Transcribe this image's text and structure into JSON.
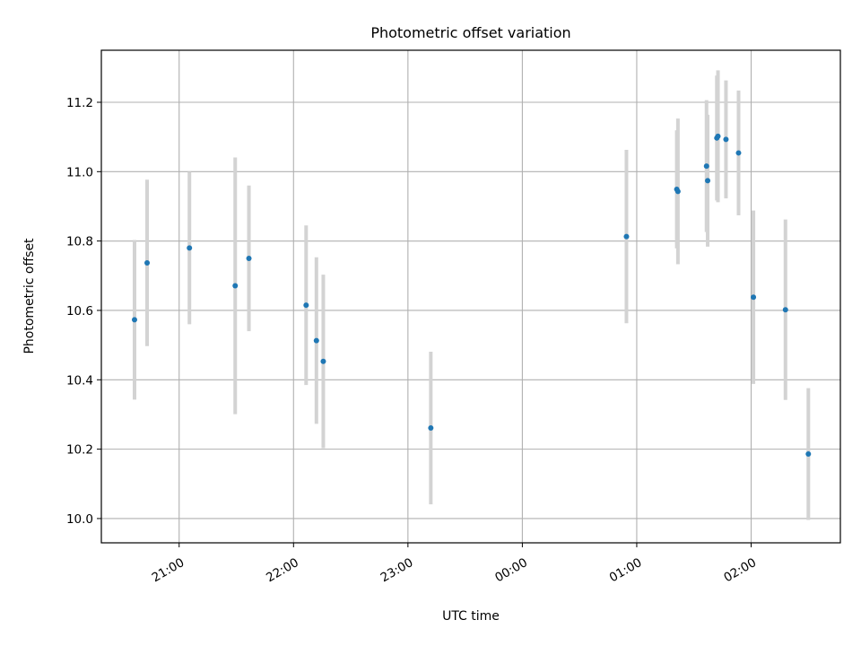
{
  "chart_data": {
    "type": "scatter",
    "title": "Photometric offset variation",
    "xlabel": "UTC time",
    "ylabel": "Photometric offset",
    "x_unit": "hours since 00:00 UTC (negative = previous evening)",
    "xlim": [
      -3.68,
      2.78
    ],
    "ylim": [
      9.93,
      11.35
    ],
    "x_ticks": [
      {
        "value": -3,
        "label": "21:00"
      },
      {
        "value": -2,
        "label": "22:00"
      },
      {
        "value": -1,
        "label": "23:00"
      },
      {
        "value": 0,
        "label": "00:00"
      },
      {
        "value": 1,
        "label": "01:00"
      },
      {
        "value": 2,
        "label": "02:00"
      }
    ],
    "y_ticks": [
      {
        "value": 10.0,
        "label": "10.0"
      },
      {
        "value": 10.2,
        "label": "10.2"
      },
      {
        "value": 10.4,
        "label": "10.4"
      },
      {
        "value": 10.6,
        "label": "10.6"
      },
      {
        "value": 10.8,
        "label": "10.8"
      },
      {
        "value": 11.0,
        "label": "11.0"
      },
      {
        "value": 11.2,
        "label": "11.2"
      }
    ],
    "grid": true,
    "marker_color": "#1f77b4",
    "errorbar_color": "#d3d3d3",
    "points": [
      {
        "x": -3.39,
        "y": 10.573,
        "yerr": 0.23
      },
      {
        "x": -3.28,
        "y": 10.737,
        "yerr": 0.24
      },
      {
        "x": -2.91,
        "y": 10.78,
        "yerr": 0.22
      },
      {
        "x": -2.51,
        "y": 10.671,
        "yerr": 0.37
      },
      {
        "x": -2.39,
        "y": 10.75,
        "yerr": 0.21
      },
      {
        "x": -1.89,
        "y": 10.615,
        "yerr": 0.23
      },
      {
        "x": -1.8,
        "y": 10.513,
        "yerr": 0.24
      },
      {
        "x": -1.74,
        "y": 10.453,
        "yerr": 0.25
      },
      {
        "x": -0.8,
        "y": 10.261,
        "yerr": 0.22
      },
      {
        "x": 0.91,
        "y": 10.813,
        "yerr": 0.25
      },
      {
        "x": 1.35,
        "y": 10.949,
        "yerr": 0.17
      },
      {
        "x": 1.36,
        "y": 10.943,
        "yerr": 0.21
      },
      {
        "x": 1.61,
        "y": 11.016,
        "yerr": 0.19
      },
      {
        "x": 1.62,
        "y": 10.974,
        "yerr": 0.19
      },
      {
        "x": 1.7,
        "y": 11.097,
        "yerr": 0.18
      },
      {
        "x": 1.71,
        "y": 11.102,
        "yerr": 0.19
      },
      {
        "x": 1.78,
        "y": 11.093,
        "yerr": 0.17
      },
      {
        "x": 1.89,
        "y": 11.054,
        "yerr": 0.18
      },
      {
        "x": 2.02,
        "y": 10.638,
        "yerr": 0.25
      },
      {
        "x": 2.3,
        "y": 10.602,
        "yerr": 0.26
      },
      {
        "x": 2.5,
        "y": 10.186,
        "yerr": 0.19
      }
    ]
  }
}
